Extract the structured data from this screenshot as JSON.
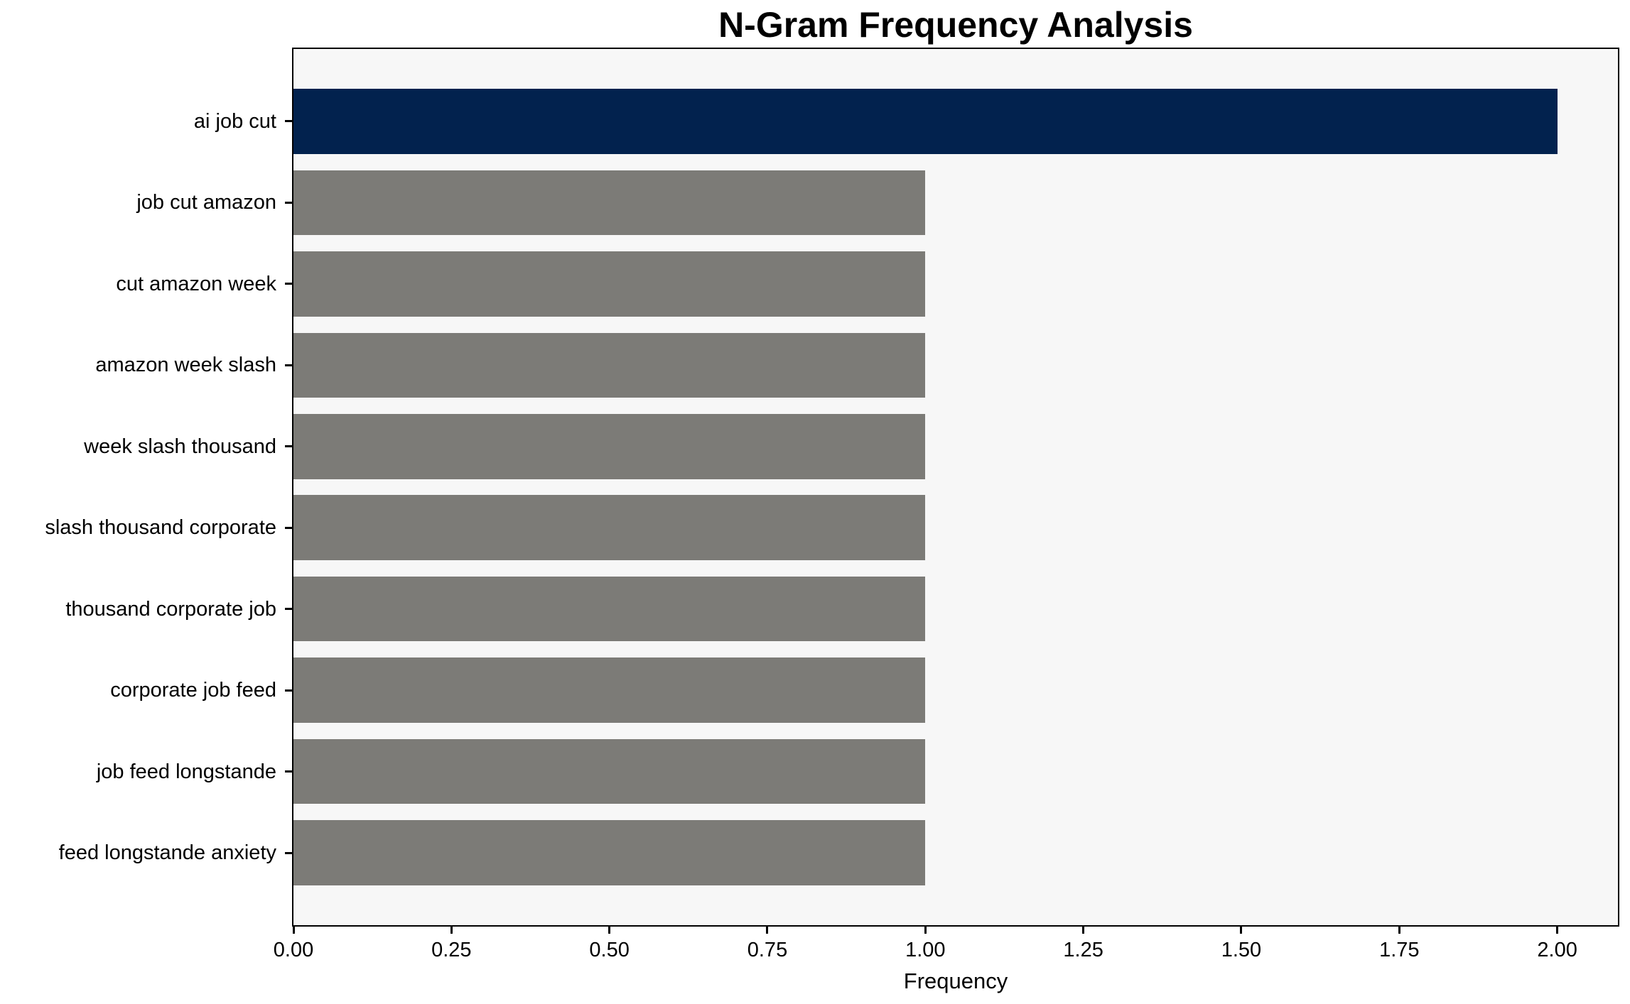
{
  "chart_data": {
    "type": "bar",
    "orientation": "horizontal",
    "title": "N-Gram Frequency Analysis",
    "xlabel": "Frequency",
    "ylabel": "",
    "categories": [
      "ai job cut",
      "job cut amazon",
      "cut amazon week",
      "amazon week slash",
      "week slash thousand",
      "slash thousand corporate",
      "thousand corporate job",
      "corporate job feed",
      "job feed longstande",
      "feed longstande anxiety"
    ],
    "values": [
      2,
      1,
      1,
      1,
      1,
      1,
      1,
      1,
      1,
      1
    ],
    "bar_colors": [
      "#02224e",
      "#7c7b77",
      "#7c7b77",
      "#7c7b77",
      "#7c7b77",
      "#7c7b77",
      "#7c7b77",
      "#7c7b77",
      "#7c7b77",
      "#7c7b77"
    ],
    "xlim": [
      0,
      2.096
    ],
    "xticks": {
      "labels": [
        "0.00",
        "0.25",
        "0.50",
        "0.75",
        "1.00",
        "1.25",
        "1.50",
        "1.75",
        "2.00"
      ],
      "values": [
        0,
        0.25,
        0.5,
        0.75,
        1.0,
        1.25,
        1.5,
        1.75,
        2.0
      ]
    },
    "grid": false,
    "legend": null
  },
  "colors": {
    "bar_highlight": "#02224e",
    "bar_default": "#7c7b77",
    "plot_background": "#f7f7f7",
    "figure_background": "#ffffff",
    "axis": "#000000",
    "text": "#000000"
  }
}
